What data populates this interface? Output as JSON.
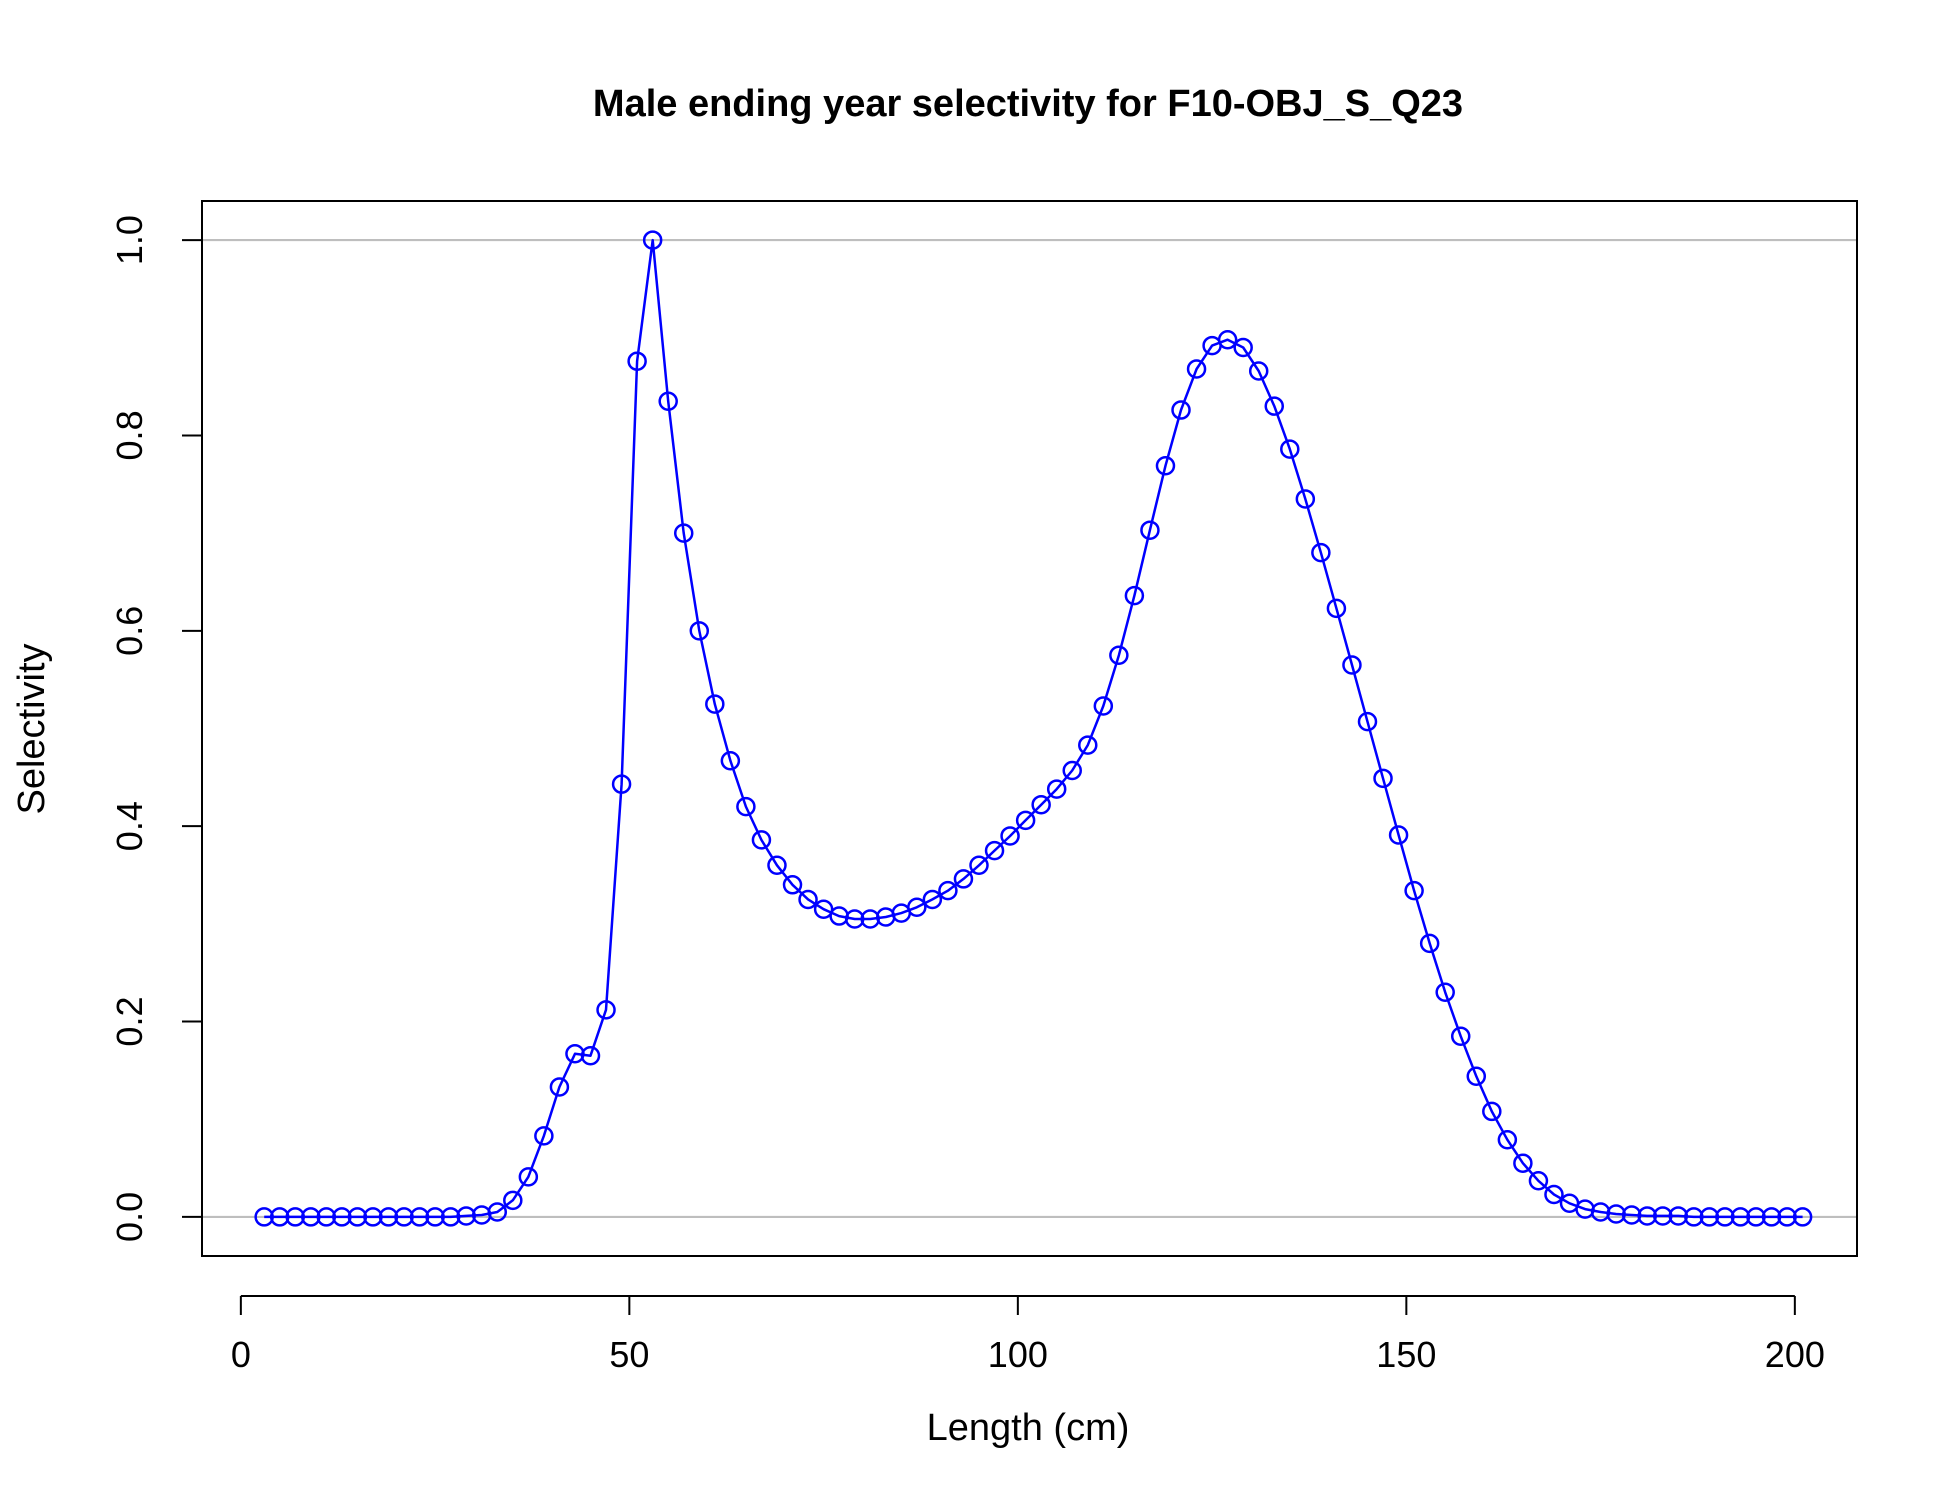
{
  "chart_data": {
    "type": "line",
    "title": "Male ending year selectivity for F10-OBJ_S_Q23",
    "xlabel": "Length (cm)",
    "ylabel": "Selectivity",
    "xlim": [
      -5,
      208
    ],
    "ylim": [
      -0.04,
      1.04
    ],
    "xticks": [
      0,
      50,
      100,
      150,
      200
    ],
    "xtick_labels": [
      "0",
      "50",
      "100",
      "150",
      "200"
    ],
    "yticks": [
      0.0,
      0.2,
      0.4,
      0.6,
      0.8,
      1.0
    ],
    "ytick_labels": [
      "0.0",
      "0.2",
      "0.4",
      "0.6",
      "0.8",
      "1.0"
    ],
    "reference_lines": [
      0,
      1
    ],
    "colors": {
      "series": "#0000ff",
      "reference": "#bebebe",
      "axis": "#000000"
    },
    "grid": false,
    "marker": "open-circle",
    "series": [
      {
        "x": [
          3,
          5,
          7,
          9,
          11,
          13,
          15,
          17,
          19,
          21,
          23,
          25,
          27,
          29,
          31,
          33,
          35,
          37,
          39,
          41,
          43,
          45,
          47,
          49,
          51,
          53,
          55,
          57,
          59,
          61,
          63,
          65,
          67,
          69,
          71,
          73,
          75,
          77,
          79,
          81,
          83,
          85,
          87,
          89,
          91,
          93,
          95,
          97,
          99,
          101,
          103,
          105,
          107,
          109,
          111,
          113,
          115,
          117,
          119,
          121,
          123,
          125,
          127,
          129,
          131,
          133,
          135,
          137,
          139,
          141,
          143,
          145,
          147,
          149,
          151,
          153,
          155,
          157,
          159,
          161,
          163,
          165,
          167,
          169,
          171,
          173,
          175,
          177,
          179,
          181,
          183,
          185,
          187,
          189,
          191,
          193,
          195,
          197,
          199,
          201
        ],
        "y": [
          0,
          0,
          0,
          0,
          0,
          0,
          0,
          0,
          0,
          0,
          0,
          0,
          0,
          0.001,
          0.002,
          0.005,
          0.017,
          0.041,
          0.083,
          0.133,
          0.167,
          0.165,
          0.212,
          0.443,
          0.876,
          1.0,
          0.835,
          0.7,
          0.6,
          0.525,
          0.467,
          0.42,
          0.386,
          0.36,
          0.34,
          0.325,
          0.315,
          0.308,
          0.305,
          0.305,
          0.307,
          0.311,
          0.317,
          0.325,
          0.334,
          0.346,
          0.36,
          0.375,
          0.39,
          0.406,
          0.422,
          0.438,
          0.457,
          0.483,
          0.523,
          0.575,
          0.636,
          0.703,
          0.769,
          0.826,
          0.868,
          0.892,
          0.898,
          0.89,
          0.866,
          0.83,
          0.786,
          0.735,
          0.68,
          0.623,
          0.565,
          0.507,
          0.449,
          0.391,
          0.334,
          0.28,
          0.23,
          0.185,
          0.144,
          0.108,
          0.079,
          0.055,
          0.037,
          0.023,
          0.014,
          0.008,
          0.005,
          0.003,
          0.002,
          0.001,
          0.001,
          0.001,
          0,
          0,
          0,
          0,
          0,
          0,
          0,
          0
        ]
      }
    ]
  }
}
